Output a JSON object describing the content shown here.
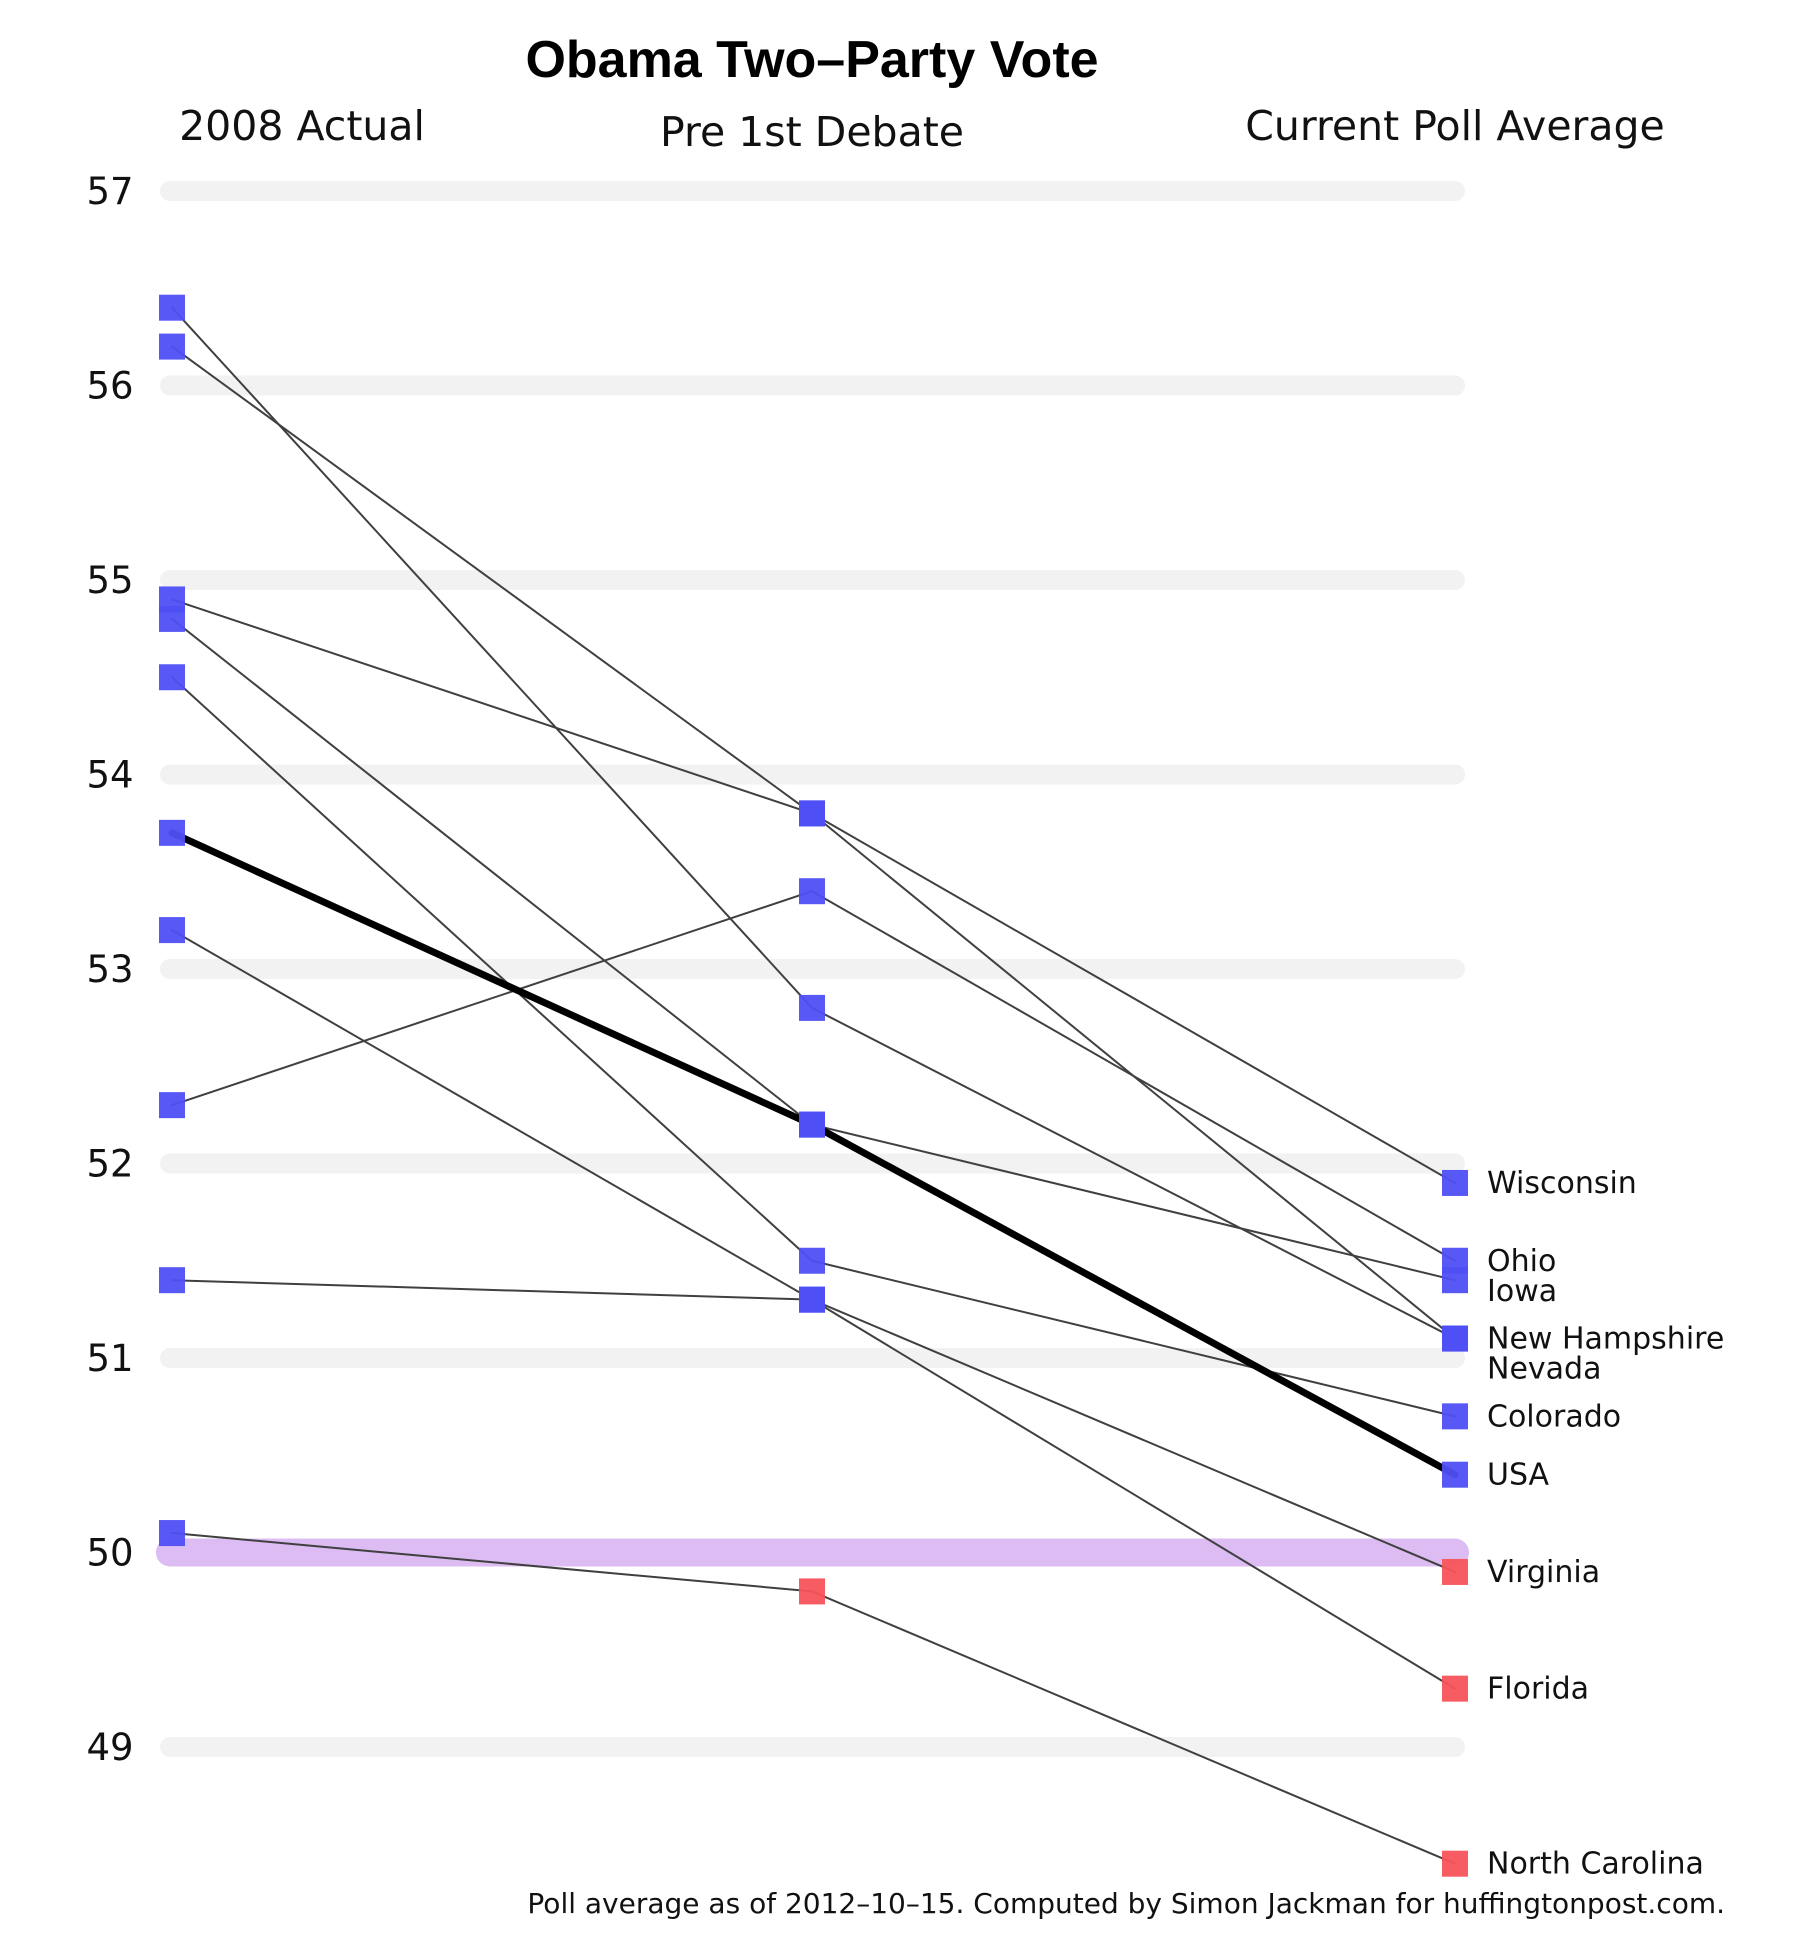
{
  "chart_data": {
    "type": "line",
    "title": "Obama Two–Party Vote",
    "column_titles": [
      "2008 Actual",
      "Pre 1st Debate",
      "Current Poll Average"
    ],
    "caption": "Poll average as of 2012–10–15. Computed by Simon Jackman for huffingtonpost.com.",
    "ylim": [
      48.4,
      57.1
    ],
    "yticks": [
      49,
      50,
      51,
      52,
      53,
      54,
      55,
      56,
      57
    ],
    "threshold": 50,
    "grid": true,
    "colors": {
      "dem": "#4f4ff5",
      "rep": "#f5535a",
      "line": "#404040",
      "usa_line": "#000000",
      "grid": "#f2f2f2",
      "threshold": "#dcbcf2"
    },
    "series": [
      {
        "name": "Wisconsin",
        "values": [
          56.2,
          53.8,
          51.9
        ]
      },
      {
        "name": "Ohio",
        "values": [
          52.3,
          53.4,
          51.5
        ]
      },
      {
        "name": "Iowa",
        "values": [
          54.8,
          52.2,
          51.4
        ]
      },
      {
        "name": "New Hampshire",
        "values": [
          54.9,
          53.8,
          51.1
        ]
      },
      {
        "name": "Nevada",
        "values": [
          56.4,
          52.8,
          51.1
        ]
      },
      {
        "name": "Colorado",
        "values": [
          54.5,
          51.5,
          50.7
        ]
      },
      {
        "name": "USA",
        "values": [
          53.7,
          52.2,
          50.4
        ]
      },
      {
        "name": "Virginia",
        "values": [
          53.2,
          51.3,
          49.9
        ]
      },
      {
        "name": "Florida",
        "values": [
          51.4,
          51.3,
          49.3
        ]
      },
      {
        "name": "North Carolina",
        "values": [
          50.1,
          49.8,
          48.4
        ]
      }
    ]
  }
}
